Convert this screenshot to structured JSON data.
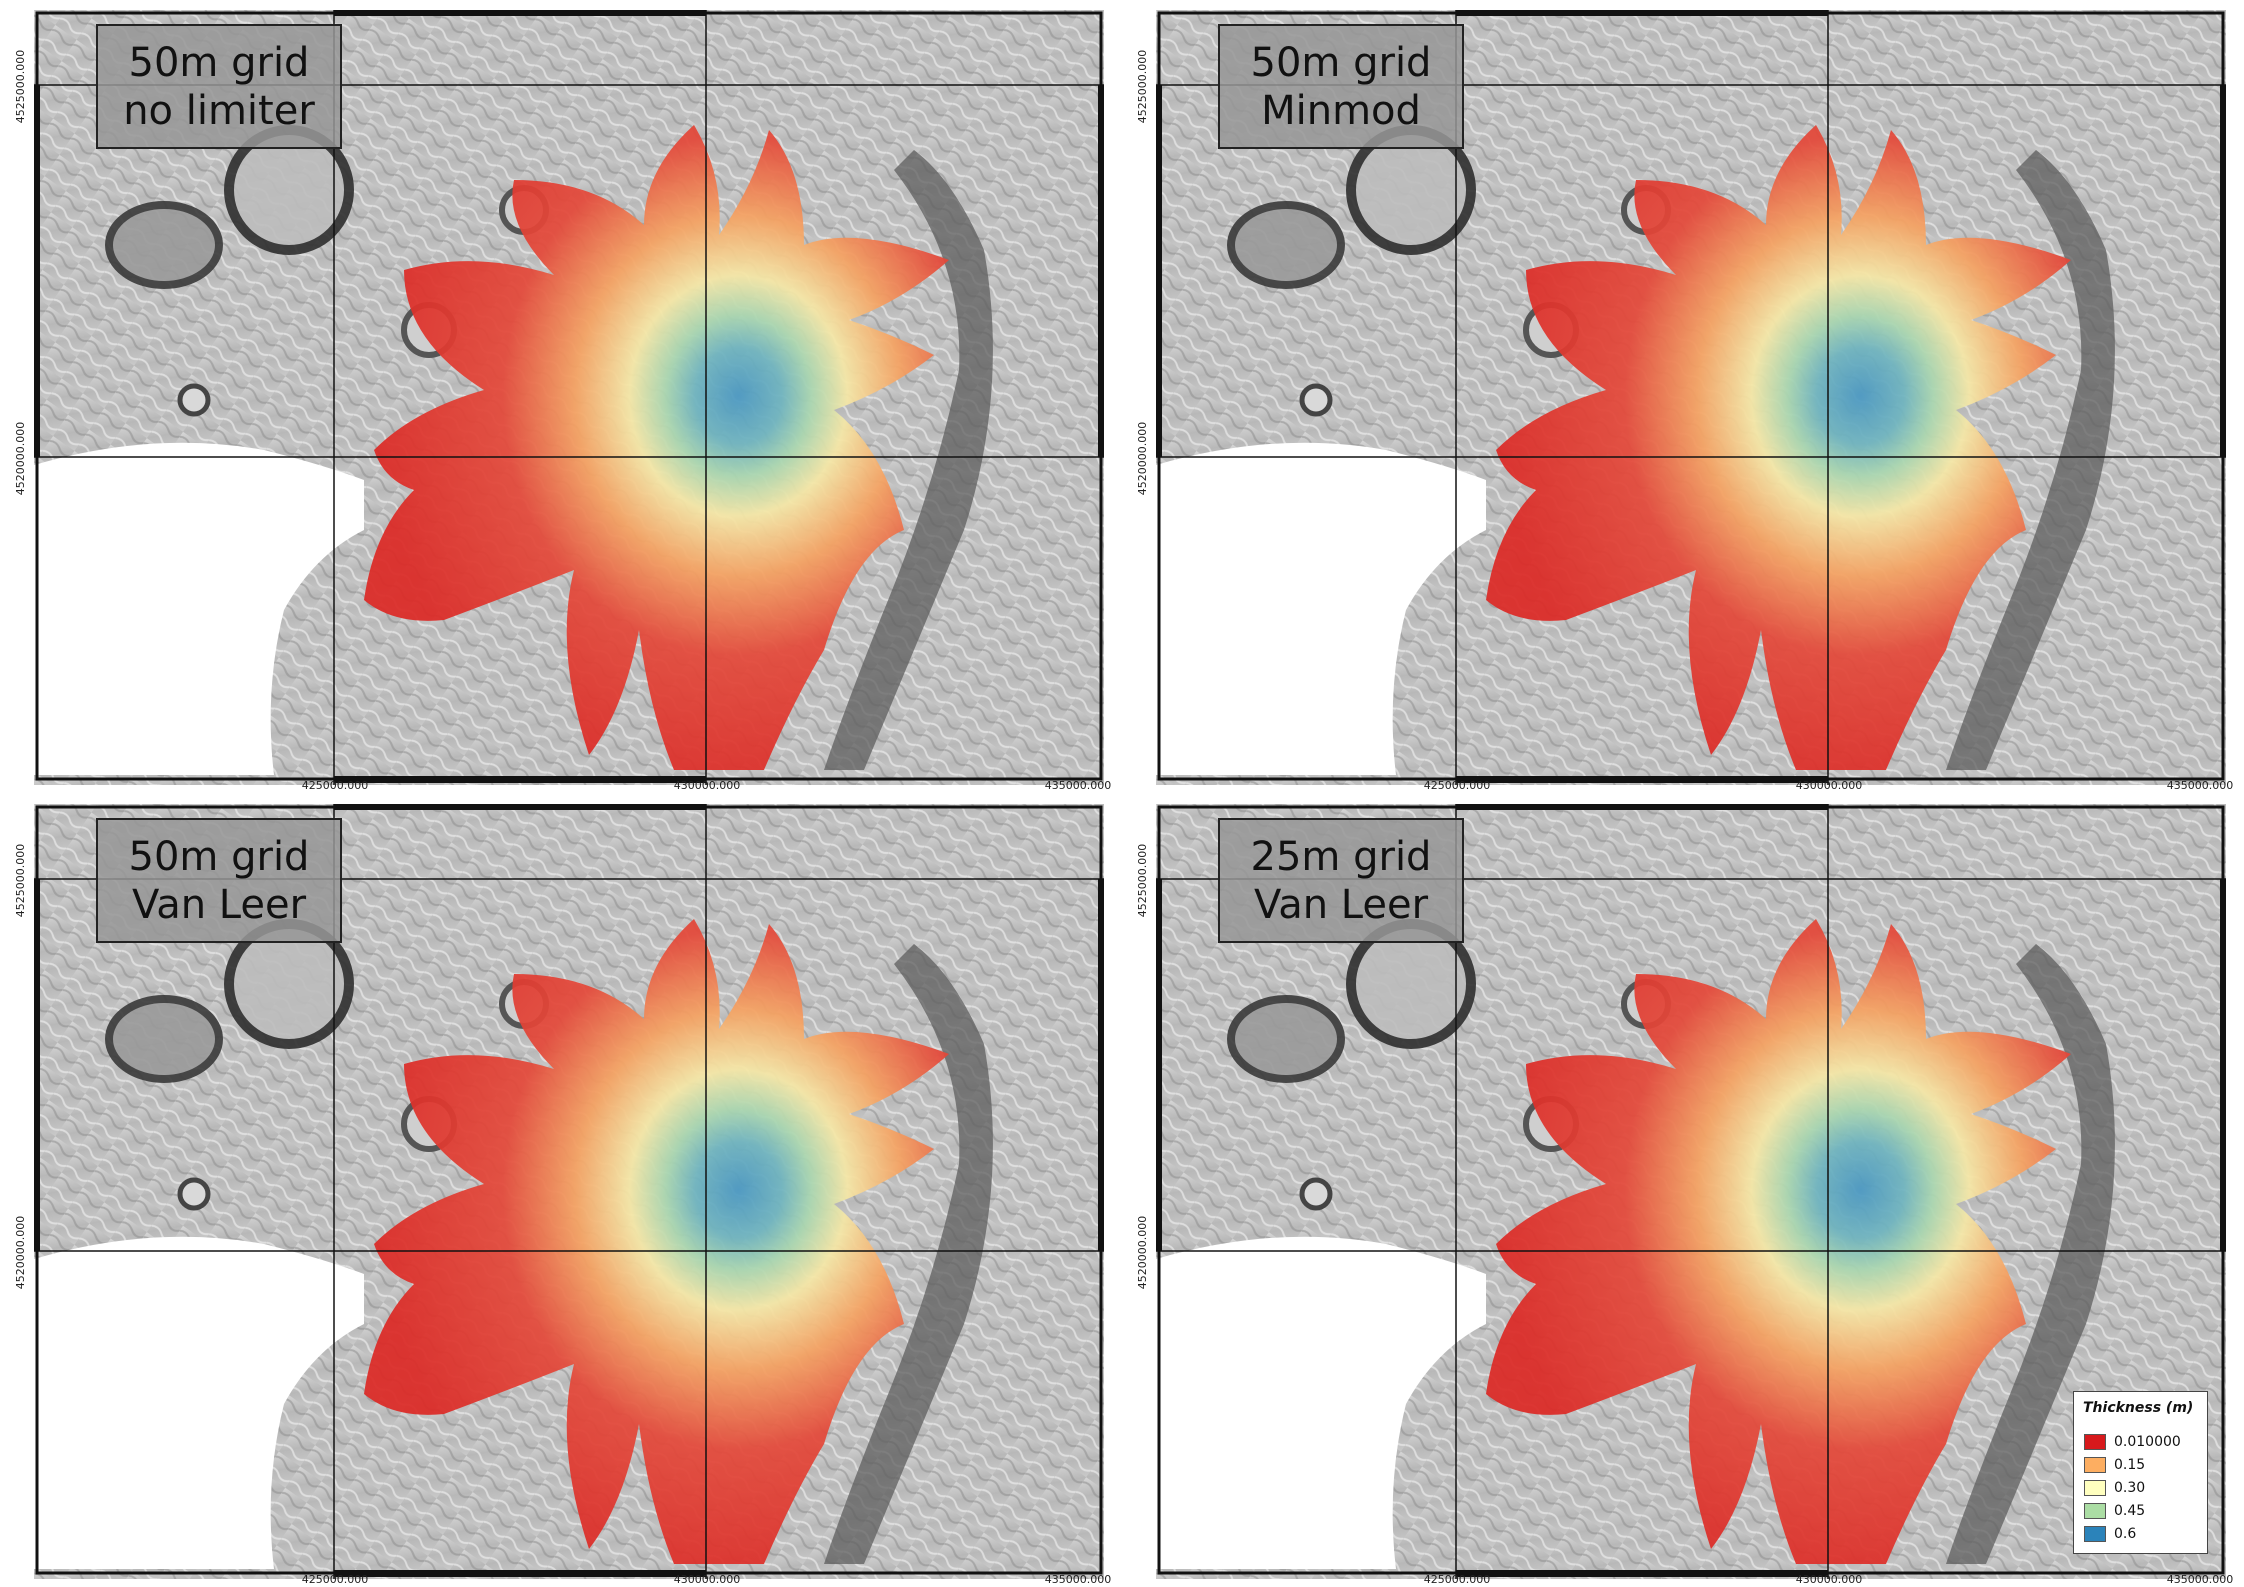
{
  "panels": [
    {
      "title_line1": "50m grid",
      "title_line2": "no limiter"
    },
    {
      "title_line1": "50m grid",
      "title_line2": "Minmod"
    },
    {
      "title_line1": "50m grid",
      "title_line2": "Van Leer"
    },
    {
      "title_line1": "25m grid",
      "title_line2": "Van Leer"
    }
  ],
  "axes": {
    "x_ticks": [
      "425000.000",
      "430000.000",
      "435000.000"
    ],
    "y_ticks": [
      "4525000.000",
      "4520000.000"
    ]
  },
  "legend": {
    "title": "Thickness (m)",
    "items": [
      {
        "label": "0.010000",
        "color": "#d7191c"
      },
      {
        "label": "0.15",
        "color": "#fdae61"
      },
      {
        "label": "0.30",
        "color": "#ffffbf"
      },
      {
        "label": "0.45",
        "color": "#abdda4"
      },
      {
        "label": "0.6",
        "color": "#2b83ba"
      }
    ]
  },
  "colors": {
    "flow_edge": "#dc2a26",
    "flow_mid": "#f08a4b",
    "flow_light": "#f9e6a0",
    "flow_core": "#8fcfb0",
    "flow_center": "#4a98c2",
    "hillshade": "#c4c4c4",
    "water": "#ffffff"
  }
}
